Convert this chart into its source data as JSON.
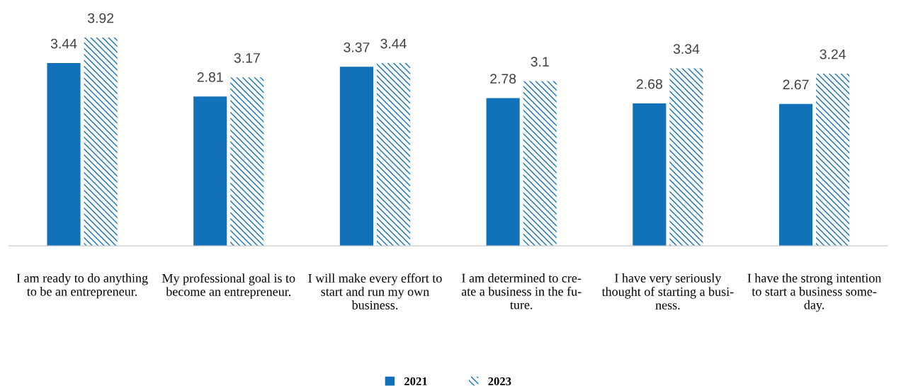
{
  "chart_data": {
    "type": "bar",
    "categories": [
      "I am ready to do anything\nto be an entrepreneur.",
      "My professional goal is to\nbecome an entrepreneur.",
      "I will make every effort to\nstart and run my own\nbusiness.",
      "I am determined to cre-\nate a business in the fu-\nture.",
      "I have very seriously\nthought of starting a busi-\nness.",
      "I have the strong intention\nto start a business some-\nday."
    ],
    "series": [
      {
        "name": "2021",
        "color": "#1172b9",
        "values": [
          3.44,
          2.81,
          3.37,
          2.78,
          2.68,
          2.67
        ]
      },
      {
        "name": "2023",
        "color": "#1172b9",
        "values": [
          3.92,
          3.17,
          3.44,
          3.1,
          3.34,
          3.24
        ]
      }
    ],
    "tick_labels": "x",
    "data_labels": true,
    "grid": false,
    "legend": "bottom"
  }
}
